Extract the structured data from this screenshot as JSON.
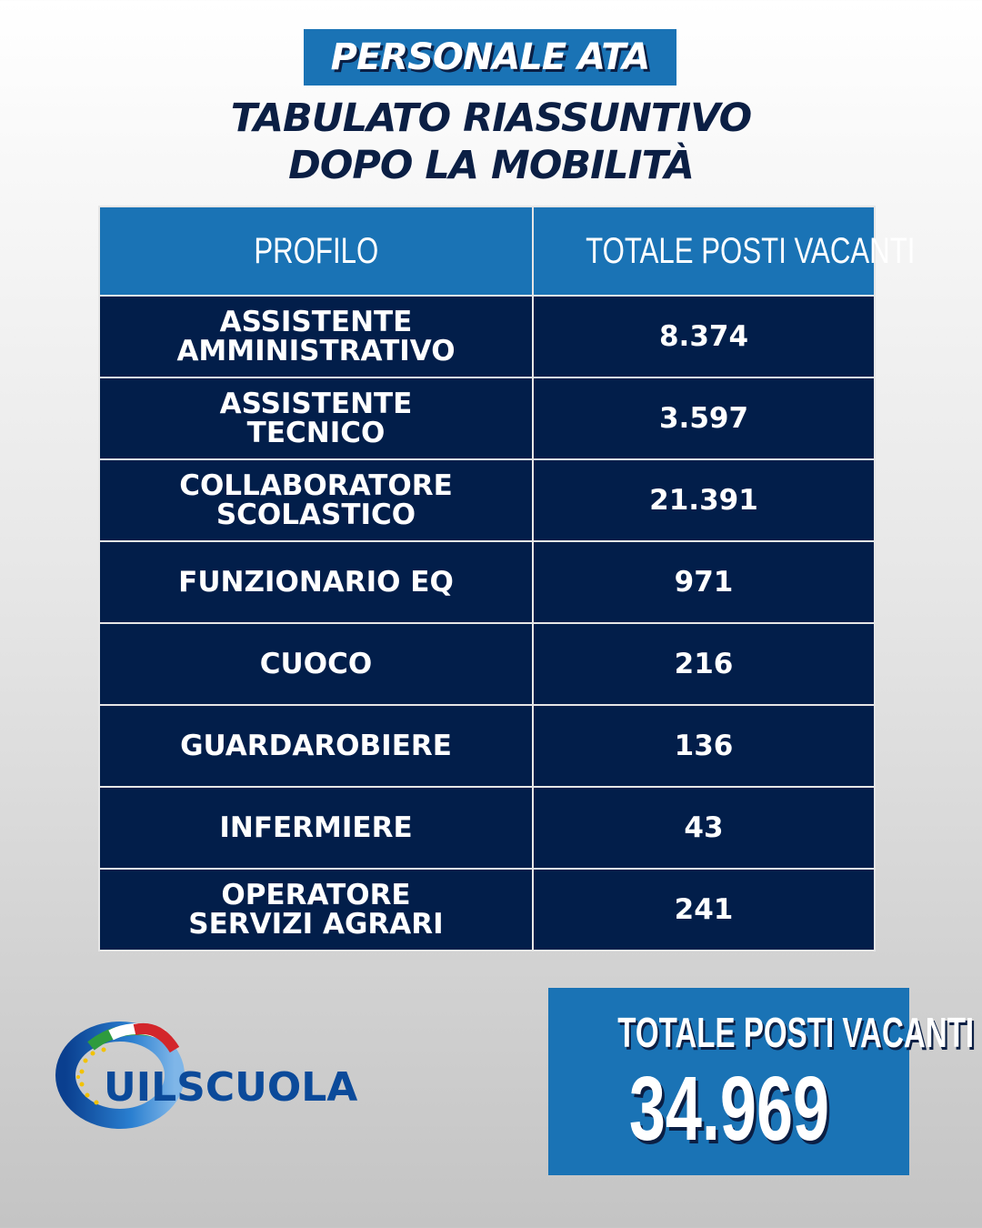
{
  "header": {
    "badge": "PERSONALE ATA",
    "title_line1": "TABULATO RIASSUNTIVO",
    "title_line2": "DOPO LA MOBILITÀ"
  },
  "table": {
    "columns": [
      "PROFILO",
      "TOTALE POSTI VACANTI"
    ],
    "rows": [
      {
        "profile_line1": "ASSISTENTE",
        "profile_line2": "AMMINISTRATIVO",
        "value": "8.374"
      },
      {
        "profile_line1": "ASSISTENTE",
        "profile_line2": "TECNICO",
        "value": "3.597"
      },
      {
        "profile_line1": "COLLABORATORE",
        "profile_line2": "SCOLASTICO",
        "value": "21.391"
      },
      {
        "profile_line1": "FUNZIONARIO EQ",
        "profile_line2": "",
        "value": "971"
      },
      {
        "profile_line1": "CUOCO",
        "profile_line2": "",
        "value": "216"
      },
      {
        "profile_line1": "GUARDAROBIERE",
        "profile_line2": "",
        "value": "136"
      },
      {
        "profile_line1": "INFERMIERE",
        "profile_line2": "",
        "value": "43"
      },
      {
        "profile_line1": "OPERATORE",
        "profile_line2": "SERVIZI AGRARI",
        "value": "241"
      }
    ]
  },
  "total": {
    "label": "TOTALE POSTI VACANTI",
    "value": "34.969"
  },
  "logo": {
    "text": "UILSCUOLA",
    "icon": "uilscuola-ring-logo-icon"
  },
  "colors": {
    "accent_blue": "#1a73b5",
    "navy": "#021e4a",
    "title_navy": "#0b1f44"
  }
}
